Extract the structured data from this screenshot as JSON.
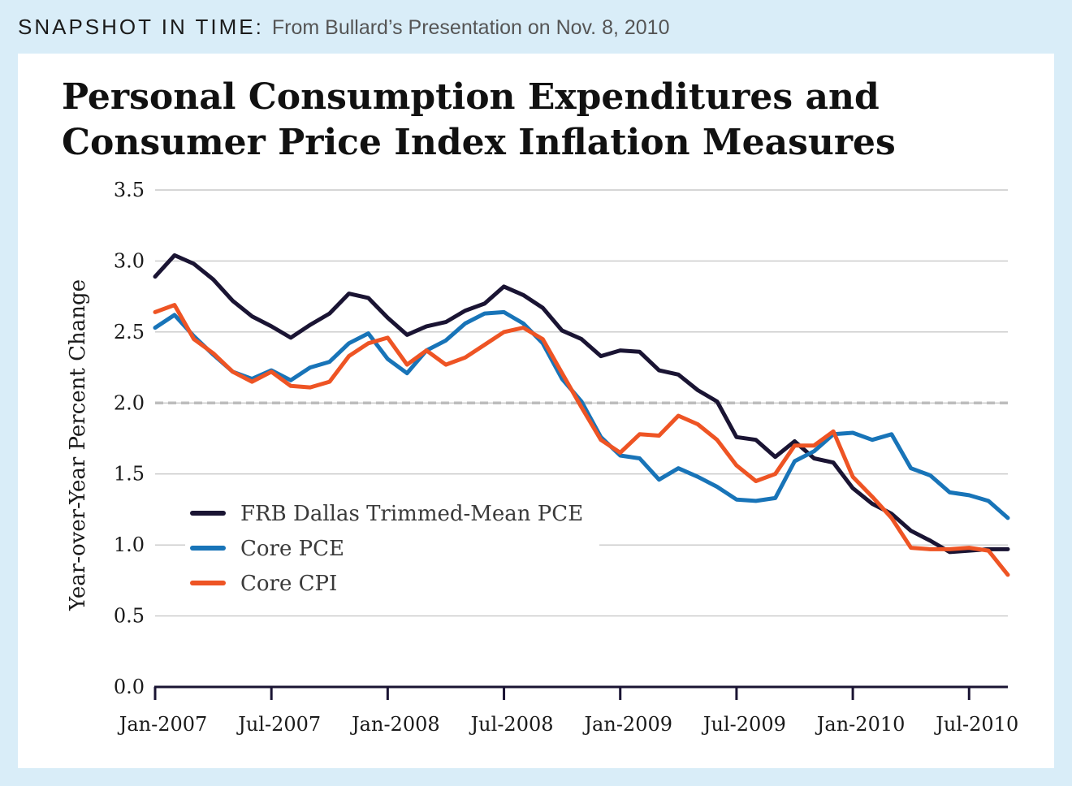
{
  "header": {
    "label": "SNAPSHOT IN TIME:",
    "subtitle": "From Bullard’s Presentation on Nov. 8, 2010"
  },
  "chart_data": {
    "type": "line",
    "title_line1": "Personal Consumption Expenditures and",
    "title_line2": "Consumer Price Index Inflation Measures",
    "ylabel": "Year-over-Year Percent Change",
    "xlabel": "",
    "ylim": [
      0,
      3.5
    ],
    "yticks": [
      "0.0",
      "0.5",
      "1.0",
      "1.5",
      "2.0",
      "2.5",
      "3.0",
      "3.5"
    ],
    "x_tick_labels": [
      "Jan-2007",
      "Jul-2007",
      "Jan-2008",
      "Jul-2008",
      "Jan-2009",
      "Jul-2009",
      "Jan-2010",
      "Jul-2010"
    ],
    "x_start": "Jan-2007",
    "x_end": "Sep-2010",
    "grid": true,
    "reference_line": {
      "value": 2.0,
      "style": "dashed",
      "color": "#bdbdbd"
    },
    "legend_position": "left-center",
    "x": [
      "Jan-2007",
      "Feb-2007",
      "Mar-2007",
      "Apr-2007",
      "May-2007",
      "Jun-2007",
      "Jul-2007",
      "Aug-2007",
      "Sep-2007",
      "Oct-2007",
      "Nov-2007",
      "Dec-2007",
      "Jan-2008",
      "Feb-2008",
      "Mar-2008",
      "Apr-2008",
      "May-2008",
      "Jun-2008",
      "Jul-2008",
      "Aug-2008",
      "Sep-2008",
      "Oct-2008",
      "Nov-2008",
      "Dec-2008",
      "Jan-2009",
      "Feb-2009",
      "Mar-2009",
      "Apr-2009",
      "May-2009",
      "Jun-2009",
      "Jul-2009",
      "Aug-2009",
      "Sep-2009",
      "Oct-2009",
      "Nov-2009",
      "Dec-2009",
      "Jan-2010",
      "Feb-2010",
      "Mar-2010",
      "Apr-2010",
      "May-2010",
      "Jun-2010",
      "Jul-2010",
      "Aug-2010",
      "Sep-2010"
    ],
    "series": [
      {
        "name": "FRB Dallas Trimmed-Mean PCE",
        "color": "#1a1433",
        "values": [
          2.89,
          3.04,
          2.98,
          2.87,
          2.72,
          2.61,
          2.54,
          2.46,
          2.55,
          2.63,
          2.77,
          2.74,
          2.6,
          2.48,
          2.54,
          2.57,
          2.65,
          2.7,
          2.82,
          2.76,
          2.67,
          2.51,
          2.45,
          2.33,
          2.37,
          2.36,
          2.23,
          2.2,
          2.09,
          2.01,
          1.76,
          1.74,
          1.62,
          1.73,
          1.61,
          1.58,
          1.4,
          1.29,
          1.22,
          1.1,
          1.03,
          0.95,
          0.96,
          0.97,
          0.97
        ]
      },
      {
        "name": "Core PCE",
        "color": "#1874b8",
        "values": [
          2.53,
          2.62,
          2.47,
          2.34,
          2.22,
          2.17,
          2.23,
          2.16,
          2.25,
          2.29,
          2.42,
          2.49,
          2.31,
          2.21,
          2.37,
          2.44,
          2.56,
          2.63,
          2.64,
          2.56,
          2.42,
          2.17,
          2.01,
          1.76,
          1.63,
          1.61,
          1.46,
          1.54,
          1.48,
          1.41,
          1.32,
          1.31,
          1.33,
          1.59,
          1.66,
          1.78,
          1.79,
          1.74,
          1.78,
          1.54,
          1.49,
          1.37,
          1.35,
          1.31,
          1.19
        ]
      },
      {
        "name": "Core CPI",
        "color": "#ee5424",
        "values": [
          2.64,
          2.69,
          2.45,
          2.35,
          2.22,
          2.15,
          2.22,
          2.12,
          2.11,
          2.15,
          2.33,
          2.42,
          2.46,
          2.27,
          2.37,
          2.27,
          2.32,
          2.41,
          2.5,
          2.53,
          2.45,
          2.21,
          1.97,
          1.74,
          1.65,
          1.78,
          1.77,
          1.91,
          1.85,
          1.74,
          1.56,
          1.45,
          1.5,
          1.7,
          1.7,
          1.8,
          1.48,
          1.34,
          1.19,
          0.98,
          0.97,
          0.97,
          0.98,
          0.96,
          0.79
        ]
      }
    ]
  }
}
